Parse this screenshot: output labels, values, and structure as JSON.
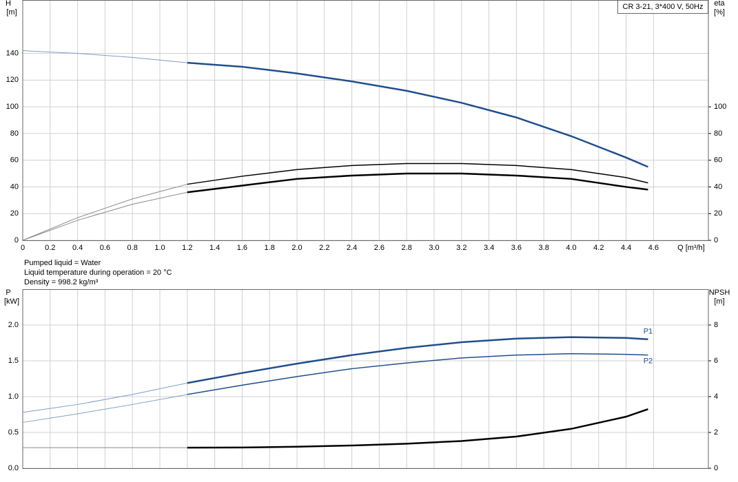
{
  "chart_data": [
    {
      "type": "line",
      "title": "CR 3-21, 3*400 V, 50Hz",
      "y_label": "H",
      "y_unit": "[m]",
      "y2_label": "eta",
      "y2_unit": "[%]",
      "x_label": "Q [m³/h]",
      "x": [
        0,
        0.4,
        0.8,
        1.2,
        1.6,
        2.0,
        2.4,
        2.8,
        3.2,
        3.6,
        4.0,
        4.4,
        4.56
      ],
      "xlim": [
        0,
        5.0
      ],
      "xticks": [
        0,
        0.2,
        0.4,
        0.6,
        0.8,
        {
          "value": 1,
          "label": "1.0"
        },
        1.2,
        1.4,
        1.6,
        1.8,
        {
          "value": 2,
          "label": "2.0"
        },
        2.2,
        2.4,
        2.6,
        2.8,
        {
          "value": 3,
          "label": "3.0"
        },
        3.2,
        3.4,
        3.6,
        3.8,
        {
          "value": 4,
          "label": "4.0"
        },
        4.2,
        4.4,
        4.6
      ],
      "ylim": [
        0,
        180
      ],
      "yticks": [
        0,
        20,
        40,
        60,
        80,
        100,
        120,
        140
      ],
      "y2lim": [
        0,
        180
      ],
      "y2ticks": [
        0,
        20,
        40,
        60,
        80,
        100
      ],
      "grid": true,
      "series": [
        {
          "color": "#7f9cc4",
          "width": 1,
          "values": [
            142,
            140,
            137,
            133,
            null,
            null,
            null,
            null,
            null,
            null,
            null,
            null,
            null
          ]
        },
        {
          "color": "#1f4e8c",
          "width": 2.5,
          "values": [
            null,
            null,
            null,
            133,
            130,
            125,
            119,
            112,
            103,
            92,
            78,
            62,
            55
          ]
        },
        {
          "color": "#8a8a8a",
          "width": 1,
          "axis": "y2",
          "values": [
            0,
            17,
            31,
            42,
            null,
            null,
            null,
            null,
            null,
            null,
            null,
            null,
            null
          ]
        },
        {
          "color": "#000000",
          "width": 1.5,
          "axis": "y2",
          "values": [
            null,
            null,
            null,
            42,
            48,
            53,
            56,
            57.5,
            57.5,
            56,
            53,
            47,
            43
          ]
        },
        {
          "color": "#8a8a8a",
          "width": 1,
          "axis": "y2",
          "values": [
            0,
            15,
            27,
            36,
            null,
            null,
            null,
            null,
            null,
            null,
            null,
            null,
            null
          ]
        },
        {
          "color": "#000000",
          "width": 2.5,
          "axis": "y2",
          "values": [
            null,
            null,
            null,
            36,
            41,
            46,
            48.5,
            50,
            50,
            48.5,
            46,
            40,
            38
          ]
        }
      ]
    },
    {
      "type": "line",
      "y_label": "P",
      "y_unit": "[kW]",
      "y2_label": "NPSH",
      "y2_unit": "[m]",
      "x": [
        0,
        0.4,
        0.8,
        1.2,
        1.6,
        2.0,
        2.4,
        2.8,
        3.2,
        3.6,
        4.0,
        4.4,
        4.56
      ],
      "xlim": [
        0,
        5.0
      ],
      "xticks": [
        0,
        0.2,
        0.4,
        0.6,
        0.8,
        1,
        1.2,
        1.4,
        1.6,
        1.8,
        2,
        2.2,
        2.4,
        2.6,
        2.8,
        3,
        3.2,
        3.4,
        3.6,
        3.8,
        4,
        4.2,
        4.4,
        4.6
      ],
      "ylim": [
        0,
        2.5
      ],
      "yticks": [
        {
          "value": 0,
          "label": "0.0"
        },
        0.5,
        {
          "value": 1,
          "label": "1.0"
        },
        1.5,
        {
          "value": 2,
          "label": "2.0"
        }
      ],
      "y2lim": [
        0,
        10
      ],
      "y2ticks": [
        0,
        2,
        4,
        6,
        8
      ],
      "grid": true,
      "series": [
        {
          "color": "#7f9cc4",
          "width": 1,
          "values": [
            0.78,
            0.89,
            1.03,
            1.19,
            null,
            null,
            null,
            null,
            null,
            null,
            null,
            null,
            null
          ]
        },
        {
          "name": "P1",
          "color": "#1f4e8c",
          "width": 2.5,
          "values": [
            null,
            null,
            null,
            1.19,
            1.33,
            1.46,
            1.58,
            1.68,
            1.76,
            1.81,
            1.83,
            1.82,
            1.8
          ]
        },
        {
          "color": "#7f9cc4",
          "width": 1,
          "values": [
            0.64,
            0.76,
            0.89,
            1.03,
            null,
            null,
            null,
            null,
            null,
            null,
            null,
            null,
            null
          ]
        },
        {
          "name": "P2",
          "color": "#1f4e8c",
          "width": 1.5,
          "values": [
            null,
            null,
            null,
            1.03,
            1.16,
            1.28,
            1.39,
            1.47,
            1.54,
            1.58,
            1.6,
            1.59,
            1.58
          ]
        },
        {
          "color": "#8a8a8a",
          "width": 1,
          "axis": "y2",
          "values": [
            1.15,
            1.15,
            1.15,
            1.15,
            null,
            null,
            null,
            null,
            null,
            null,
            null,
            null,
            null
          ]
        },
        {
          "color": "#000000",
          "width": 2.5,
          "axis": "y2",
          "values": [
            null,
            null,
            null,
            1.15,
            1.16,
            1.2,
            1.27,
            1.37,
            1.52,
            1.77,
            2.2,
            2.88,
            3.3
          ]
        }
      ]
    }
  ],
  "notes": [
    "Pumped liquid = Water",
    "Liquid temperature during operation = 20 °C",
    "Density = 998.2 kg/m³"
  ]
}
